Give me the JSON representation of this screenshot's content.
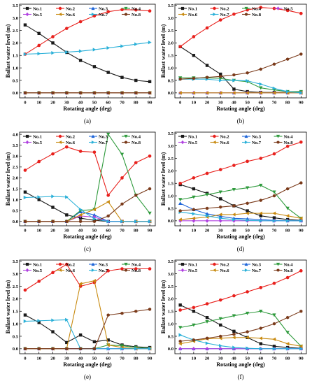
{
  "figure": {
    "series_names": [
      "No.1",
      "No.2",
      "No.3",
      "No.4",
      "No.5",
      "No.6",
      "No.7",
      "No.8"
    ],
    "series_colors": [
      "#1a1a1a",
      "#e8201c",
      "#1c63d8",
      "#2e9a3c",
      "#b040e0",
      "#c88a10",
      "#2ab0d8",
      "#7a3a1a"
    ],
    "series_markers": [
      "square",
      "circle",
      "triangle-up",
      "triangle-down",
      "diamond",
      "triangle-left",
      "triangle-right",
      "hexagon"
    ]
  },
  "chart_data": [
    {
      "label": "(a)",
      "type": "line",
      "xlabel": "Rotating angle (deg)",
      "ylabel": "Ballast water level (m)",
      "x": [
        0,
        10,
        20,
        30,
        40,
        50,
        60,
        70,
        80,
        90
      ],
      "xlim": [
        -4,
        94
      ],
      "ylim": [
        -0.2,
        3.55
      ],
      "yticks": [
        "0.0",
        "0.5",
        "1.0",
        "1.5",
        "2.0",
        "2.5",
        "3.0",
        "3.5"
      ],
      "legend_series": [
        0,
        1,
        2,
        3,
        4,
        5,
        6,
        7
      ],
      "series": [
        {
          "values": [
            2.72,
            2.38,
            2.0,
            1.62,
            1.3,
            1.05,
            0.82,
            0.62,
            0.5,
            0.45
          ]
        },
        {
          "values": [
            1.55,
            1.9,
            2.25,
            2.58,
            2.85,
            3.08,
            3.25,
            3.33,
            3.32,
            3.28
          ]
        },
        {
          "values": [
            0,
            0,
            0,
            0,
            0,
            0,
            0,
            0,
            0,
            0
          ]
        },
        {
          "values": [
            0,
            0,
            0,
            0,
            0,
            0,
            0,
            0,
            0,
            0
          ]
        },
        {
          "values": [
            0,
            0,
            0,
            0,
            0,
            0,
            0,
            0,
            0,
            0
          ]
        },
        {
          "values": [
            0,
            0,
            0,
            0,
            0,
            0,
            0,
            0,
            0,
            0
          ]
        },
        {
          "values": [
            1.55,
            1.57,
            1.6,
            1.63,
            1.67,
            1.73,
            1.8,
            1.87,
            1.95,
            2.02
          ]
        },
        {
          "values": [
            0,
            0,
            0,
            0,
            0,
            0,
            0,
            0,
            0,
            0
          ]
        }
      ]
    },
    {
      "label": "(b)",
      "type": "line",
      "xlabel": "Rotating angle (deg)",
      "ylabel": "Ballast water level (m)",
      "x": [
        0,
        10,
        20,
        30,
        40,
        50,
        60,
        70,
        80,
        90
      ],
      "xlim": [
        -4,
        94
      ],
      "ylim": [
        -0.2,
        3.55
      ],
      "yticks": [
        "0.0",
        "0.5",
        "1.0",
        "1.5",
        "2.0",
        "2.5",
        "3.0",
        "3.5"
      ],
      "legend_series": [
        0,
        1,
        3,
        4,
        5,
        6,
        7
      ],
      "series": [
        {
          "values": [
            1.85,
            1.5,
            1.1,
            0.75,
            0.15,
            0.05,
            0.02,
            0.02,
            0.02,
            0.02
          ]
        },
        {
          "values": [
            1.85,
            2.25,
            2.6,
            2.92,
            3.15,
            3.32,
            3.42,
            3.38,
            3.3,
            3.18
          ]
        },
        {
          "values": [
            0,
            0,
            0,
            0,
            0,
            0,
            0,
            0,
            0,
            0
          ]
        },
        {
          "values": [
            0.6,
            0.6,
            0.6,
            0.58,
            0.5,
            0.45,
            0.2,
            0.12,
            0.05,
            0.05
          ]
        },
        {
          "values": [
            0,
            0,
            0,
            0,
            0,
            0,
            0,
            0,
            0,
            0
          ]
        },
        {
          "values": [
            0,
            0,
            0,
            0,
            0,
            0,
            0,
            0,
            0,
            0
          ]
        },
        {
          "values": [
            0.55,
            0.55,
            0.55,
            0.5,
            0.5,
            0.48,
            0.35,
            0.18,
            0.05,
            0.0
          ]
        },
        {
          "values": [
            0.55,
            0.58,
            0.62,
            0.66,
            0.72,
            0.8,
            0.95,
            1.15,
            1.35,
            1.55
          ]
        }
      ]
    },
    {
      "label": "(c)",
      "type": "line",
      "xlabel": "Rotating angle (deg)",
      "ylabel": "Ballast water level (m)",
      "x": [
        0,
        10,
        20,
        30,
        40,
        50,
        60,
        70,
        80,
        90
      ],
      "xlim": [
        -4,
        94
      ],
      "ylim": [
        -0.2,
        4.1
      ],
      "yticks": [
        "0.0",
        "0.5",
        "1.0",
        "1.5",
        "2.0",
        "2.5",
        "3.0",
        "3.5",
        "4.0"
      ],
      "legend_series": [
        0,
        1,
        2,
        3,
        4,
        5,
        6,
        7
      ],
      "series": [
        {
          "values": [
            1.35,
            1.0,
            0.65,
            0.3,
            0.15,
            0.05,
            0.0,
            0.0,
            0.0,
            0.0
          ]
        },
        {
          "values": [
            2.35,
            2.75,
            3.1,
            3.42,
            3.22,
            3.18,
            1.2,
            2.0,
            2.7,
            3.0
          ]
        },
        {
          "values": [
            0,
            0,
            0,
            0,
            0.45,
            0.3,
            0,
            0,
            0,
            0
          ]
        },
        {
          "values": [
            0,
            0,
            0,
            0,
            0.5,
            0.55,
            4.0,
            3.08,
            1.2,
            0.38
          ]
        },
        {
          "values": [
            0,
            0,
            0,
            0,
            0.25,
            0.2,
            0,
            0,
            0,
            0
          ]
        },
        {
          "values": [
            0,
            0,
            0,
            0,
            0.3,
            0.55,
            0.9,
            0,
            0,
            0
          ]
        },
        {
          "values": [
            1.1,
            1.12,
            1.15,
            1.12,
            0.55,
            0.12,
            0.0,
            0.0,
            0.0,
            0.0
          ]
        },
        {
          "values": [
            0,
            0,
            0,
            0,
            0,
            0,
            0.25,
            0.8,
            1.2,
            1.5
          ]
        }
      ]
    },
    {
      "label": "(d)",
      "type": "line",
      "xlabel": "Rotating angle (deg)",
      "ylabel": "Ballast water level (m)",
      "x": [
        0,
        10,
        20,
        30,
        40,
        50,
        60,
        70,
        80,
        90
      ],
      "xlim": [
        -4,
        94
      ],
      "ylim": [
        -0.2,
        3.55
      ],
      "yticks": [
        "0.0",
        "0.5",
        "1.0",
        "1.5",
        "2.0",
        "2.5",
        "3.0",
        "3.5"
      ],
      "legend_series": [
        0,
        1,
        2,
        3,
        4,
        5,
        6,
        7
      ],
      "series": [
        {
          "values": [
            1.45,
            1.28,
            1.1,
            0.88,
            0.6,
            0.4,
            0.2,
            0.12,
            0.05,
            0.02
          ]
        },
        {
          "values": [
            1.5,
            1.72,
            1.9,
            2.05,
            2.22,
            2.38,
            2.5,
            2.68,
            2.98,
            3.15
          ]
        },
        {
          "values": [
            0.7,
            0.45,
            0.28,
            0.18,
            0.1,
            0.08,
            0.05,
            0.02,
            0.0,
            0.0
          ]
        },
        {
          "values": [
            0.85,
            0.95,
            1.05,
            1.15,
            1.25,
            1.32,
            1.42,
            1.15,
            0.5,
            0.1
          ]
        },
        {
          "values": [
            0,
            0,
            0,
            0,
            0,
            0,
            0,
            0,
            0,
            0
          ]
        },
        {
          "values": [
            0.05,
            0.1,
            0.15,
            0.25,
            0.25,
            0.3,
            0.3,
            0.3,
            0.2,
            0.1
          ]
        },
        {
          "values": [
            0.35,
            0.28,
            0.2,
            0.1,
            0.05,
            0.02,
            0.0,
            0.0,
            0.0,
            0.0
          ]
        },
        {
          "values": [
            0.4,
            0.45,
            0.5,
            0.55,
            0.6,
            0.7,
            0.82,
            1.0,
            1.28,
            1.52
          ]
        }
      ]
    },
    {
      "label": "(e)",
      "type": "line",
      "xlabel": "Rotating angle (deg)",
      "ylabel": "Ballast water level (m)",
      "x": [
        0,
        10,
        20,
        30,
        40,
        50,
        60,
        70,
        80,
        90
      ],
      "xlim": [
        -4,
        94
      ],
      "ylim": [
        -0.2,
        3.55
      ],
      "yticks": [
        "0.0",
        "0.5",
        "1.0",
        "1.5",
        "2.0",
        "2.5",
        "3.0",
        "3.5"
      ],
      "legend_series": [
        0,
        1,
        2,
        3,
        4,
        5,
        6,
        7
      ],
      "series": [
        {
          "values": [
            1.35,
            1.05,
            0.68,
            0.25,
            0.55,
            0.28,
            0.35,
            0.15,
            0.08,
            0.05
          ]
        },
        {
          "values": [
            2.35,
            2.7,
            3.05,
            3.38,
            2.5,
            2.65,
            3.12,
            3.2,
            3.2,
            3.2
          ]
        },
        {
          "values": [
            0,
            0,
            0,
            0,
            0,
            0,
            0,
            0,
            0,
            0
          ]
        },
        {
          "values": [
            0,
            0,
            0,
            0,
            0,
            0,
            0.15,
            0.12,
            0.05,
            0.02
          ]
        },
        {
          "values": [
            0,
            0,
            0,
            0,
            0,
            0,
            0,
            0,
            0,
            0
          ]
        },
        {
          "values": [
            0,
            0,
            0,
            0,
            2.6,
            2.72,
            0.15,
            0.05,
            0.0,
            0.0
          ]
        },
        {
          "values": [
            1.1,
            1.12,
            1.14,
            1.16,
            0.0,
            0.0,
            0.0,
            0.0,
            0.0,
            0.0
          ]
        },
        {
          "values": [
            0,
            0,
            0,
            0,
            0,
            0,
            1.35,
            1.42,
            1.5,
            1.58
          ]
        }
      ]
    },
    {
      "label": "(f)",
      "type": "line",
      "xlabel": "Rotating angle (deg)",
      "ylabel": "Ballast water level (m)",
      "x": [
        0,
        10,
        20,
        30,
        40,
        50,
        60,
        70,
        80,
        90
      ],
      "xlim": [
        -4,
        94
      ],
      "ylim": [
        -0.2,
        3.55
      ],
      "yticks": [
        "0.0",
        "0.5",
        "1.0",
        "1.5",
        "2.0",
        "2.5",
        "3.0",
        "3.5"
      ],
      "legend_series": [
        0,
        1,
        2,
        3,
        4,
        5,
        6,
        7
      ],
      "series": [
        {
          "values": [
            1.75,
            1.5,
            1.25,
            0.95,
            0.7,
            0.45,
            0.2,
            0.1,
            0.05,
            0.02
          ]
        },
        {
          "values": [
            1.55,
            1.65,
            1.8,
            1.95,
            2.12,
            2.28,
            2.45,
            2.62,
            2.85,
            3.12
          ]
        },
        {
          "values": [
            0,
            0,
            0,
            0,
            0,
            0,
            0,
            0,
            0,
            0
          ]
        },
        {
          "values": [
            0.85,
            0.95,
            1.08,
            1.2,
            1.32,
            1.42,
            1.5,
            1.35,
            0.65,
            0.1
          ]
        },
        {
          "values": [
            0,
            0,
            0,
            0,
            0,
            0,
            0,
            0,
            0,
            0
          ]
        },
        {
          "values": [
            0.2,
            0.3,
            0.4,
            0.42,
            0.45,
            0.45,
            0.42,
            0.38,
            0.2,
            0.1
          ]
        },
        {
          "values": [
            0.55,
            0.35,
            0.22,
            0.12,
            0.05,
            0.02,
            0.0,
            0.0,
            0.0,
            0.0
          ]
        },
        {
          "values": [
            0.3,
            0.35,
            0.42,
            0.5,
            0.58,
            0.68,
            0.82,
            1.0,
            1.25,
            1.5
          ]
        }
      ]
    }
  ]
}
